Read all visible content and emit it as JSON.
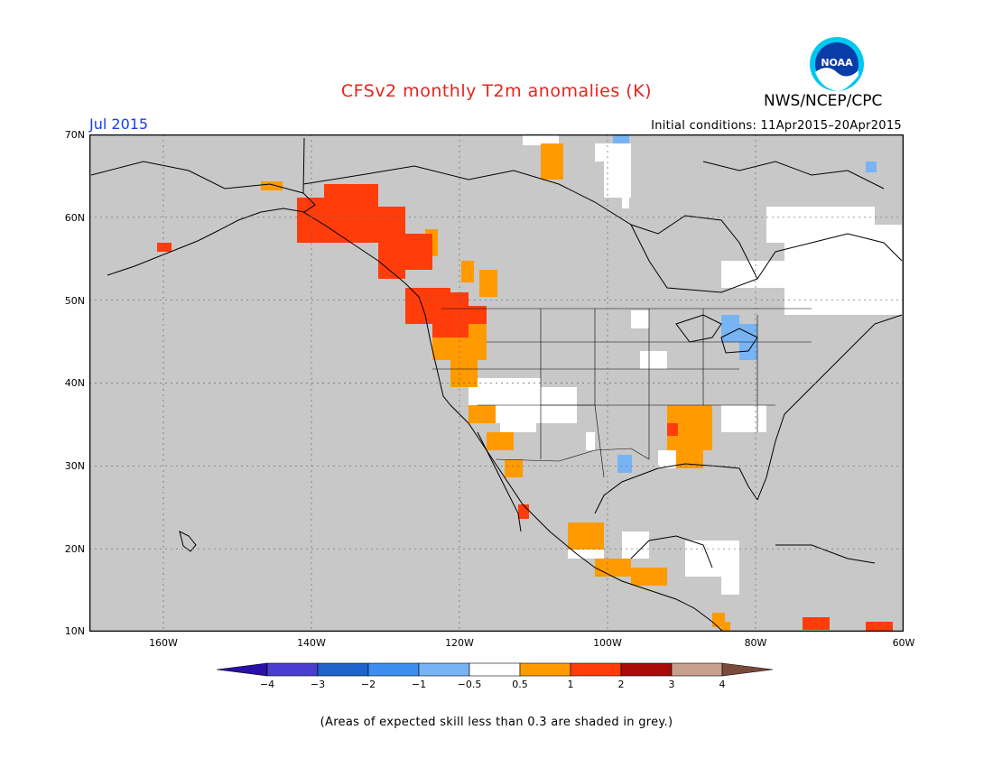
{
  "title": "CFSv2 monthly T2m anomalies (K)",
  "org": "NWS/NCEP/CPC",
  "logo_text": "NOAA",
  "month_label": "Jul 2015",
  "initial_conditions": "Initial conditions: 11Apr2015–20Apr2015",
  "lat_labels": [
    "70N",
    "60N",
    "50N",
    "40N",
    "30N",
    "20N",
    "10N"
  ],
  "lon_labels": [
    "160W",
    "140W",
    "120W",
    "100W",
    "80W",
    "60W"
  ],
  "colorbar": {
    "labels": [
      "−4",
      "−3",
      "−2",
      "−1",
      "−0.5",
      "0.5",
      "1",
      "2",
      "3",
      "4"
    ],
    "colors": [
      "#2a0fa8",
      "#4a3ed0",
      "#1e64cc",
      "#3c8ef0",
      "#78b4f4",
      "#ffffff",
      "#ff9a00",
      "#ff3c0a",
      "#a80a0a",
      "#c9a08e",
      "#7a4a3c"
    ]
  },
  "note": "(Areas of expected skill less than 0.3 are shaded in grey.)",
  "colors": {
    "grey_skill": "#c8c8c8",
    "anomaly_0_5_1": "#ff9a00",
    "anomaly_1_2": "#ff3c0a",
    "anomaly_neg_0_5_1": "#78b4f4",
    "neutral": "#ffffff"
  }
}
